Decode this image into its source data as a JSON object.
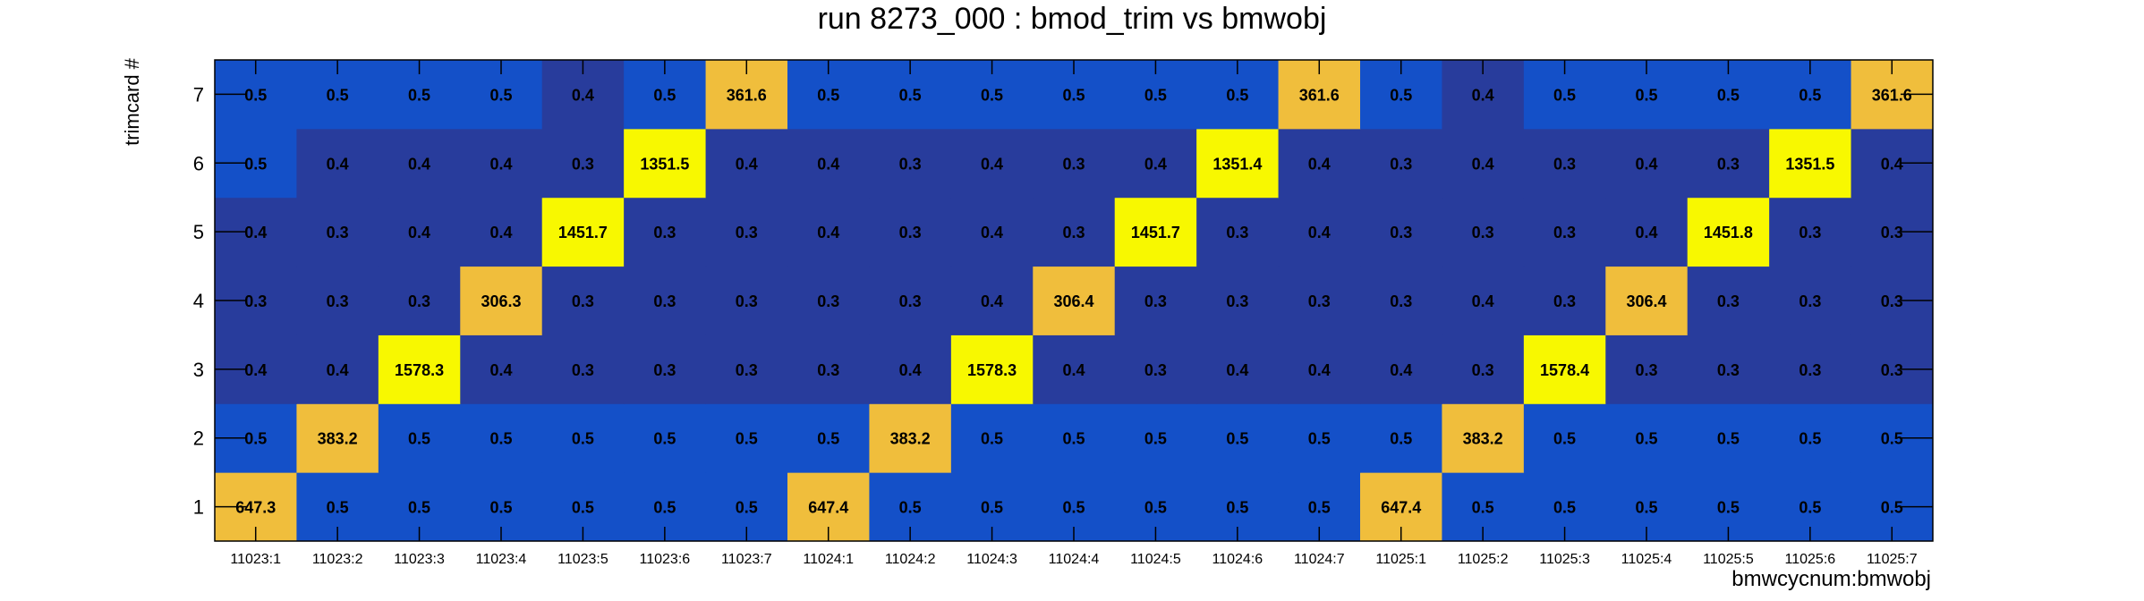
{
  "chart_data": {
    "type": "heatmap",
    "title": "run 8273_000 : bmod_trim vs bmwobj",
    "xlabel": "bmwcycnum:bmwobj",
    "ylabel": "trimcard #",
    "x_categories": [
      "11023:1",
      "11023:2",
      "11023:3",
      "11023:4",
      "11023:5",
      "11023:6",
      "11023:7",
      "11024:1",
      "11024:2",
      "11024:3",
      "11024:4",
      "11024:5",
      "11024:6",
      "11024:7",
      "11025:1",
      "11025:2",
      "11025:3",
      "11025:4",
      "11025:5",
      "11025:6",
      "11025:7"
    ],
    "y_categories": [
      "1",
      "2",
      "3",
      "4",
      "5",
      "6",
      "7"
    ],
    "values": [
      [
        "647.3",
        "0.5",
        "0.5",
        "0.5",
        "0.5",
        "0.5",
        "0.5",
        "647.4",
        "0.5",
        "0.5",
        "0.5",
        "0.5",
        "0.5",
        "0.5",
        "647.4",
        "0.5",
        "0.5",
        "0.5",
        "0.5",
        "0.5",
        "0.5"
      ],
      [
        "0.5",
        "383.2",
        "0.5",
        "0.5",
        "0.5",
        "0.5",
        "0.5",
        "0.5",
        "383.2",
        "0.5",
        "0.5",
        "0.5",
        "0.5",
        "0.5",
        "0.5",
        "383.2",
        "0.5",
        "0.5",
        "0.5",
        "0.5",
        "0.5"
      ],
      [
        "0.4",
        "0.4",
        "1578.3",
        "0.4",
        "0.3",
        "0.3",
        "0.3",
        "0.3",
        "0.4",
        "1578.3",
        "0.4",
        "0.3",
        "0.4",
        "0.4",
        "0.4",
        "0.3",
        "1578.4",
        "0.3",
        "0.3",
        "0.3",
        "0.3"
      ],
      [
        "0.3",
        "0.3",
        "0.3",
        "306.3",
        "0.3",
        "0.3",
        "0.3",
        "0.3",
        "0.3",
        "0.4",
        "306.4",
        "0.3",
        "0.3",
        "0.3",
        "0.3",
        "0.4",
        "0.3",
        "306.4",
        "0.3",
        "0.3",
        "0.3"
      ],
      [
        "0.4",
        "0.3",
        "0.4",
        "0.4",
        "1451.7",
        "0.3",
        "0.3",
        "0.4",
        "0.3",
        "0.4",
        "0.3",
        "1451.7",
        "0.3",
        "0.4",
        "0.3",
        "0.3",
        "0.3",
        "0.4",
        "1451.8",
        "0.3",
        "0.3"
      ],
      [
        "0.5",
        "0.4",
        "0.4",
        "0.4",
        "0.3",
        "1351.5",
        "0.4",
        "0.4",
        "0.3",
        "0.4",
        "0.3",
        "0.4",
        "1351.4",
        "0.4",
        "0.3",
        "0.4",
        "0.3",
        "0.4",
        "0.3",
        "1351.5",
        "0.4"
      ],
      [
        "0.5",
        "0.5",
        "0.5",
        "0.5",
        "0.4",
        "0.5",
        "361.6",
        "0.5",
        "0.5",
        "0.5",
        "0.5",
        "0.5",
        "0.5",
        "361.6",
        "0.5",
        "0.4",
        "0.5",
        "0.5",
        "0.5",
        "0.5",
        "361.6"
      ]
    ],
    "colors": {
      "low": "#283c9c",
      "mid": "#1450c8",
      "high": "#f0be3c",
      "max": "#f8f800"
    },
    "grid": false,
    "legend": "none"
  }
}
